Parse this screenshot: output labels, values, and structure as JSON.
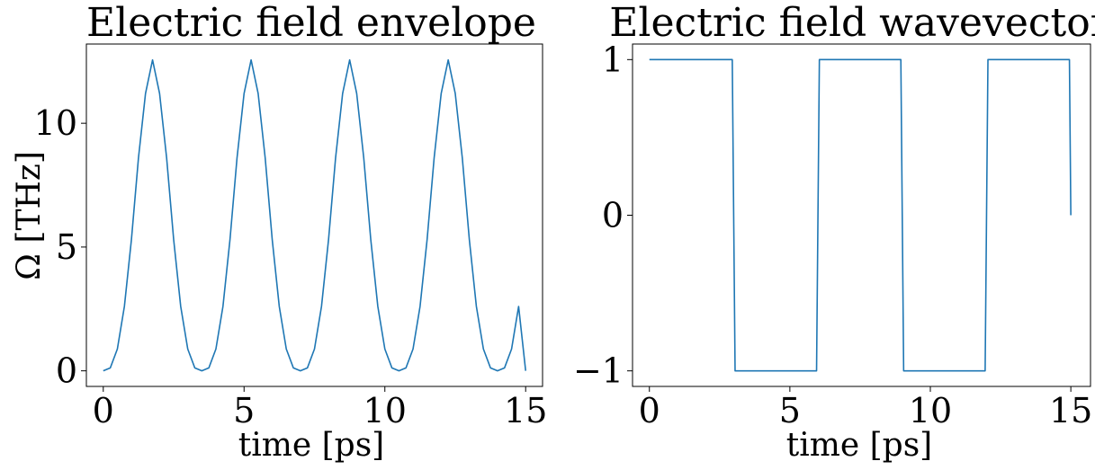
{
  "chart_data": [
    {
      "type": "line",
      "title": "Electric field envelope",
      "xlabel": "time [ps]",
      "ylabel": "Ω [THz]",
      "xlim": [
        -0.6,
        15.6
      ],
      "ylim": [
        -0.63,
        13.2
      ],
      "xticks": [
        0,
        5,
        10,
        15
      ],
      "xtick_labels": [
        "0",
        "5",
        "10",
        "15"
      ],
      "yticks": [
        0,
        5,
        10
      ],
      "ytick_labels": [
        "0",
        "5",
        "10"
      ],
      "grid": false,
      "series": [
        {
          "color": "#1f77b4",
          "x": [
            0,
            0.25,
            0.5,
            0.75,
            1.0,
            1.25,
            1.5,
            1.75,
            2.0,
            2.25,
            2.5,
            2.75,
            3.0,
            3.25,
            3.5,
            3.75,
            4.0,
            4.25,
            4.5,
            4.75,
            5.0,
            5.25,
            5.5,
            5.75,
            6.0,
            6.25,
            6.5,
            6.75,
            7.0,
            7.25,
            7.5,
            7.75,
            8.0,
            8.25,
            8.5,
            8.75,
            9.0,
            9.25,
            9.5,
            9.75,
            10.0,
            10.25,
            10.5,
            10.75,
            11.0,
            11.25,
            11.5,
            11.75,
            12.0,
            12.25,
            12.5,
            12.75,
            13.0,
            13.25,
            13.5,
            13.75,
            14.0,
            14.25,
            14.5,
            14.75,
            15.0
          ],
          "y": [
            0.0,
            0.12,
            0.88,
            2.6,
            5.3,
            8.6,
            11.2,
            12.56,
            11.2,
            8.6,
            5.3,
            2.6,
            0.88,
            0.12,
            0.0,
            0.12,
            0.88,
            2.6,
            5.3,
            8.6,
            11.2,
            12.56,
            11.2,
            8.6,
            5.3,
            2.6,
            0.88,
            0.12,
            0.0,
            0.12,
            0.88,
            2.6,
            5.3,
            8.6,
            11.2,
            12.56,
            11.2,
            8.6,
            5.3,
            2.6,
            0.88,
            0.12,
            0.0,
            0.12,
            0.88,
            2.6,
            5.3,
            8.6,
            11.2,
            12.56,
            11.2,
            8.6,
            5.3,
            2.6,
            0.88,
            0.12,
            0.0,
            0.12,
            0.88,
            2.6,
            0.0
          ]
        }
      ]
    },
    {
      "type": "line",
      "title": "Electric field wavevector",
      "xlabel": "time [ps]",
      "ylabel": "",
      "xlim": [
        -0.6,
        15.7
      ],
      "ylim": [
        -1.1,
        1.1
      ],
      "xticks": [
        0,
        5,
        10,
        15
      ],
      "xtick_labels": [
        "0",
        "5",
        "10",
        "15"
      ],
      "yticks": [
        -1,
        0,
        1
      ],
      "ytick_labels": [
        "−1",
        "0",
        "1"
      ],
      "grid": false,
      "series": [
        {
          "color": "#1f77b4",
          "x": [
            0,
            2.95,
            3.05,
            5.95,
            6.05,
            8.95,
            9.05,
            11.95,
            12.05,
            14.95,
            15.0
          ],
          "y": [
            1,
            1,
            -1,
            -1,
            1,
            1,
            -1,
            -1,
            1,
            1,
            0
          ]
        }
      ]
    }
  ]
}
